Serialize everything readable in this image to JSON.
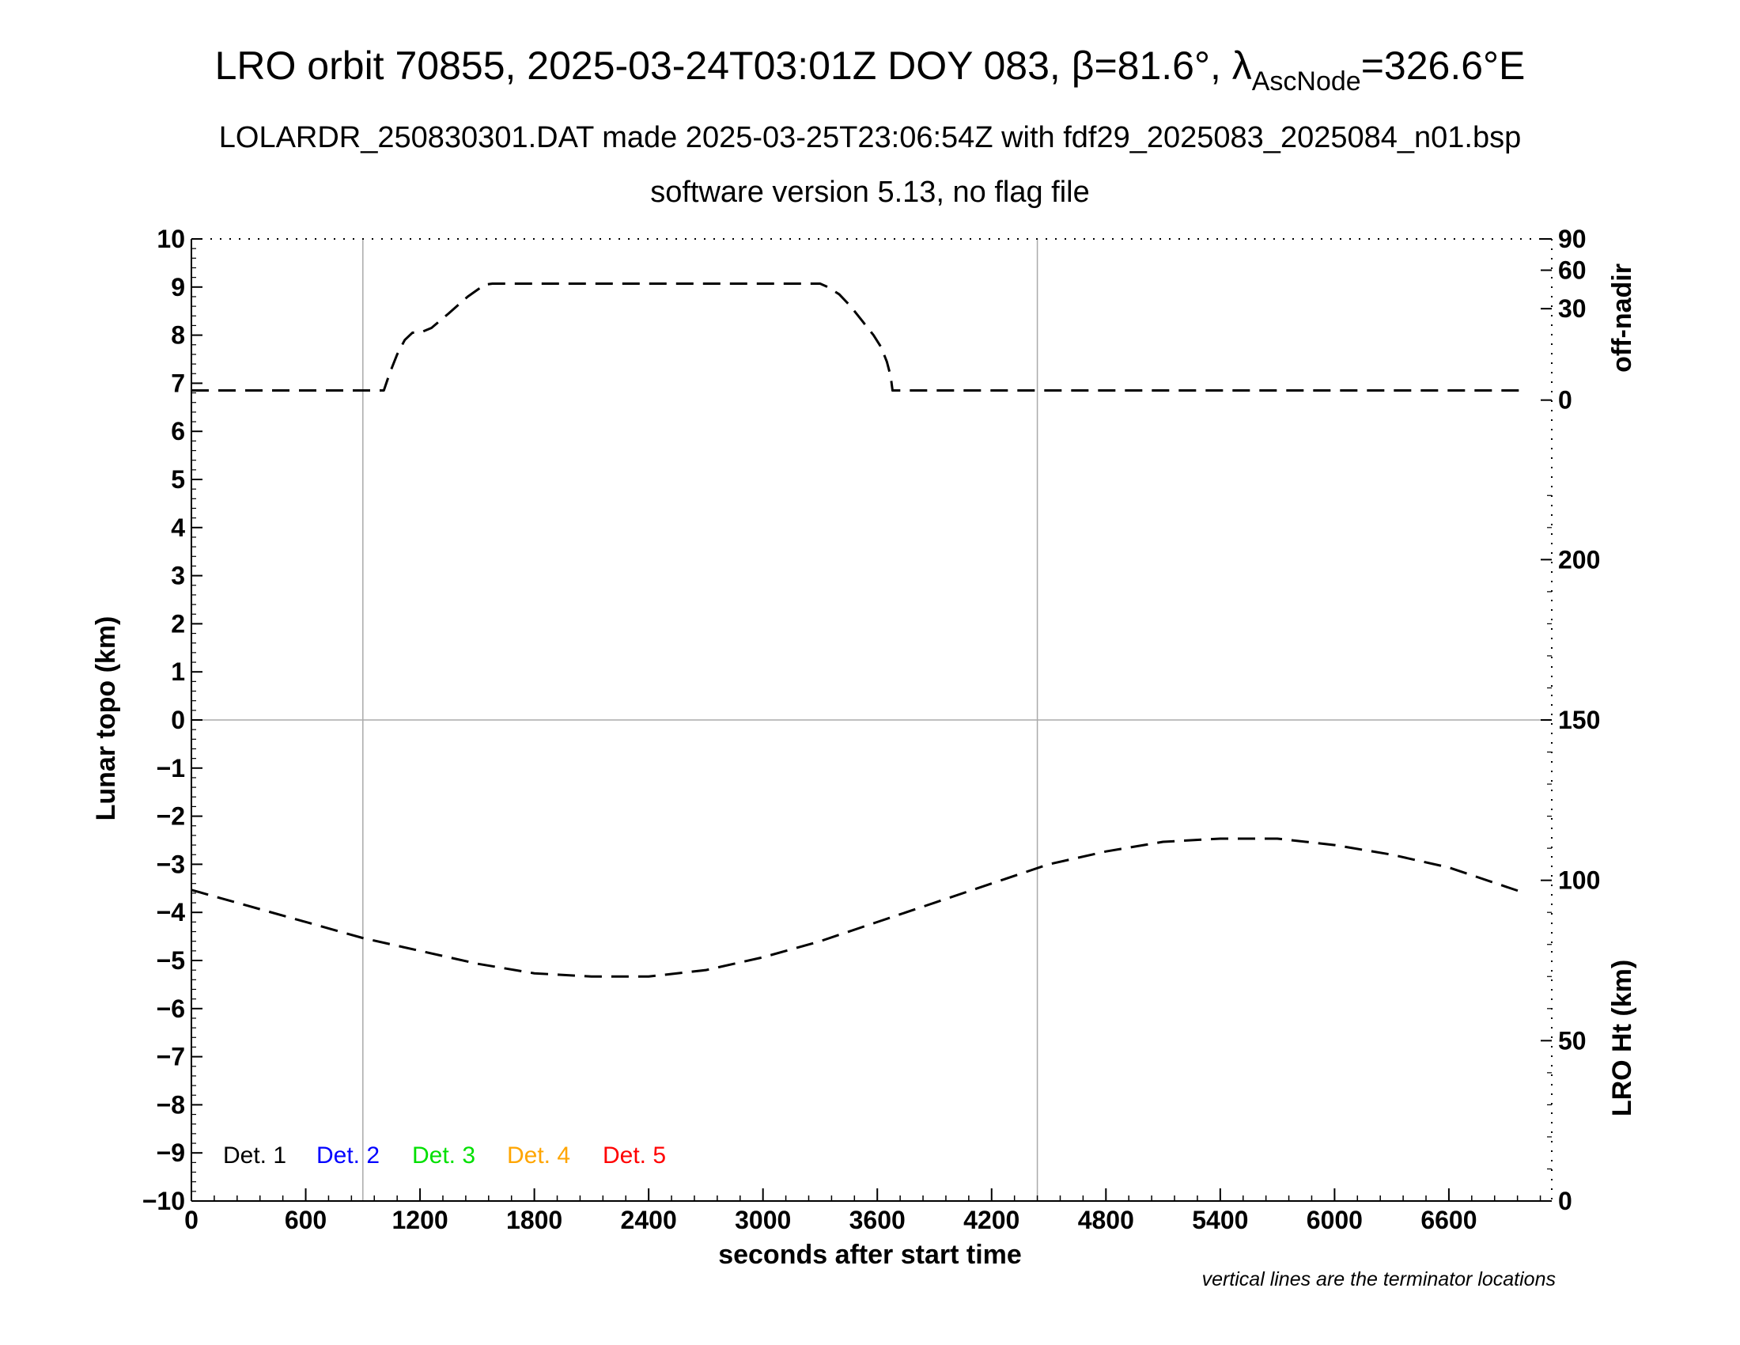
{
  "title": {
    "line1_prefix": "LRO orbit 70855, 2025-03-24T03:01Z DOY 083, β=81.6°, λ",
    "line1_sub": "AscNode",
    "line1_suffix": "=326.6°E",
    "line2": "LOLARDR_250830301.DAT made 2025-03-25T23:06:54Z with fdf29_2025083_2025084_n01.bsp",
    "line3": "software version 5.13, no flag file"
  },
  "footnote": "vertical lines are the terminator locations",
  "chart_data": {
    "type": "line",
    "xlabel": "seconds after start time",
    "ylabel_left": "Lunar topo (km)",
    "ylabel_right_top": "off-nadir",
    "ylabel_right_bottom": "LRO Ht (km)",
    "xlim": [
      0,
      7140
    ],
    "ylim_left": [
      -10,
      10
    ],
    "x_ticks": [
      0,
      600,
      1200,
      1800,
      2400,
      3000,
      3600,
      4200,
      4800,
      5400,
      6000,
      6600
    ],
    "y_ticks_left": [
      10,
      9,
      8,
      7,
      6,
      5,
      4,
      3,
      2,
      1,
      0,
      -1,
      -2,
      -3,
      -4,
      -5,
      -6,
      -7,
      -8,
      -9,
      -10
    ],
    "y_tick_labels_left": [
      "10",
      "9",
      "8",
      "7",
      "6",
      "5",
      "4",
      "3",
      "2",
      "1",
      "0",
      "−1",
      "−2",
      "−3",
      "−4",
      "−5",
      "−6",
      "−7",
      "−8",
      "−9",
      "−10"
    ],
    "right_top_ticks": [
      {
        "label": "90",
        "topo": 10.0
      },
      {
        "label": "60",
        "topo": 9.35
      },
      {
        "label": "30",
        "topo": 8.55
      },
      {
        "label": "0",
        "topo": 6.65
      }
    ],
    "right_bottom_ticks": [
      {
        "label": "200",
        "ht": 200
      },
      {
        "label": "150",
        "ht": 150
      },
      {
        "label": "100",
        "ht": 100
      },
      {
        "label": "50",
        "ht": 50
      },
      {
        "label": "0",
        "ht": 0
      }
    ],
    "lro_ht_range": [
      0,
      300
    ],
    "terminator_lines_x": [
      900,
      4440
    ],
    "zero_line": true,
    "legend": [
      {
        "label": "Det. 1",
        "color": "#000000"
      },
      {
        "label": "Det. 2",
        "color": "#0000ff"
      },
      {
        "label": "Det. 3",
        "color": "#00e000"
      },
      {
        "label": "Det. 4",
        "color": "#ffa500"
      },
      {
        "label": "Det. 5",
        "color": "#ff0000"
      }
    ],
    "series": [
      {
        "quantity": "off-nadir",
        "x": [
          0,
          1010,
          1040,
          1080,
          1120,
          1160,
          1200,
          1260,
          1350,
          1450,
          1540,
          1580,
          3300,
          3340,
          3400,
          3460,
          3520,
          3580,
          3620,
          3650,
          3670,
          3680,
          6990
        ],
        "topo": [
          6.85,
          6.85,
          7.2,
          7.6,
          7.9,
          8.05,
          8.05,
          8.15,
          8.45,
          8.8,
          9.05,
          9.07,
          9.07,
          9.0,
          8.85,
          8.6,
          8.3,
          8.0,
          7.75,
          7.45,
          7.15,
          6.85,
          6.85
        ]
      },
      {
        "quantity": "LRO Ht",
        "x": [
          0,
          300,
          600,
          900,
          1200,
          1500,
          1800,
          2100,
          2400,
          2700,
          3000,
          3300,
          3600,
          3900,
          4200,
          4500,
          4800,
          5100,
          5400,
          5700,
          6000,
          6300,
          6600,
          6900,
          7000
        ],
        "ht": [
          97,
          92,
          87,
          82,
          78,
          74,
          71,
          70,
          70,
          72,
          76,
          81,
          87,
          93,
          99,
          105,
          109,
          112,
          113,
          113,
          111,
          108,
          104,
          98,
          96
        ]
      }
    ]
  }
}
